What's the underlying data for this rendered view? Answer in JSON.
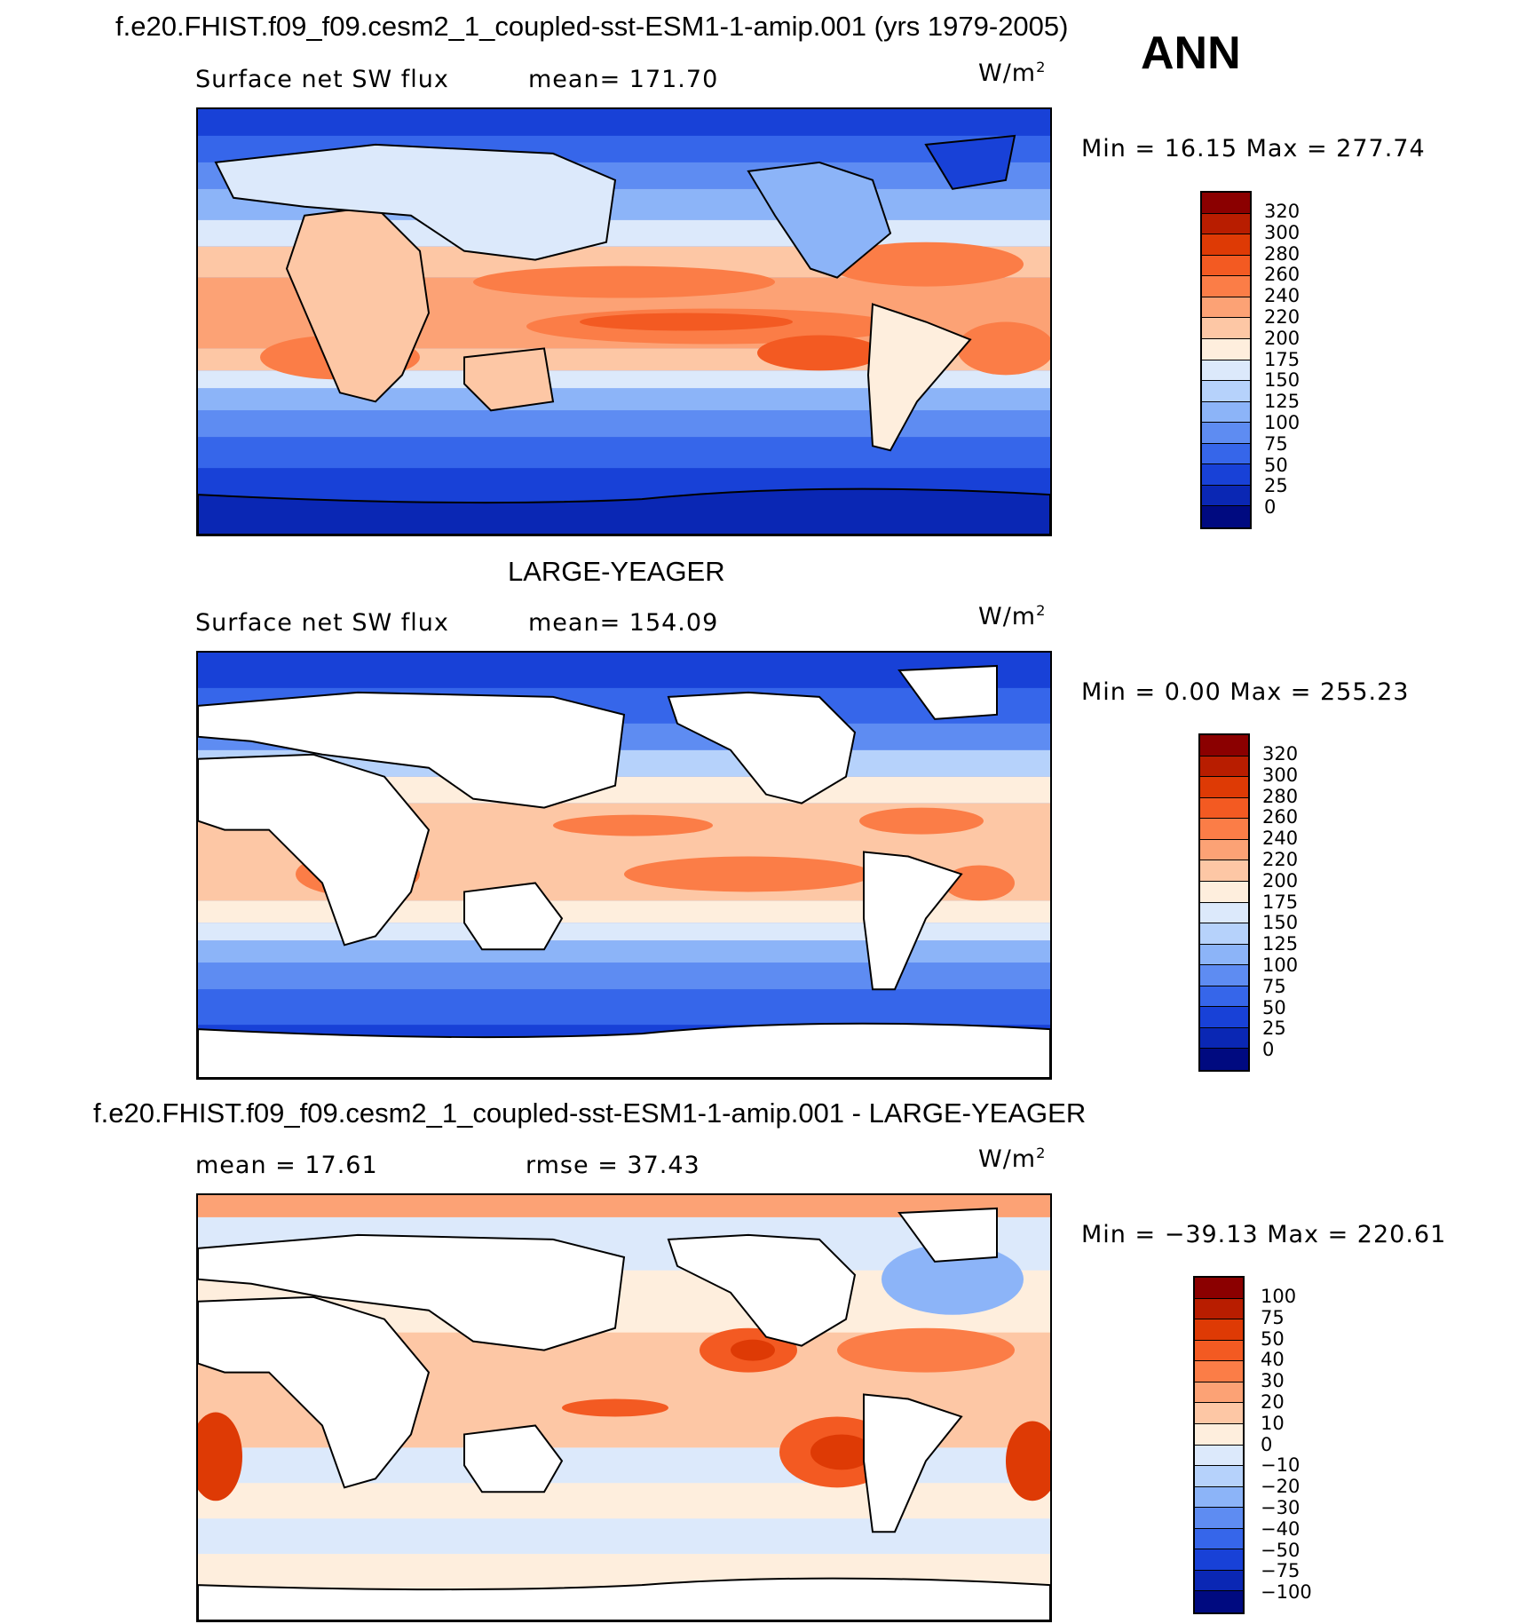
{
  "header": {
    "title": "f.e20.FHIST.f09_f09.cesm2_1_coupled-sst-ESM1-1-amip.001 (yrs 1979-2005)",
    "season": "ANN"
  },
  "panels": [
    {
      "id": "model",
      "title": "",
      "left_label": "Surface net SW flux",
      "center_label": "mean= 171.70",
      "units": "W/m",
      "units_sup": "2",
      "minmax": "Min =   16.15 Max = 277.74",
      "colorbar": {
        "labels": [
          "320",
          "300",
          "280",
          "260",
          "240",
          "220",
          "200",
          "175",
          "150",
          "125",
          "100",
          "75",
          "50",
          "25",
          "0"
        ],
        "colors": [
          "#8b0000",
          "#b81d00",
          "#de3a05",
          "#f35a22",
          "#fb7d47",
          "#fca275",
          "#fdc7a5",
          "#feeedd",
          "#dce9fb",
          "#b6d2fb",
          "#8cb4f8",
          "#5e8cf2",
          "#3666ea",
          "#1841d7",
          "#0a27b4",
          "#000a80"
        ]
      }
    },
    {
      "id": "obs",
      "title": "LARGE-YEAGER",
      "left_label": "Surface net SW flux",
      "center_label": "mean= 154.09",
      "units": "W/m",
      "units_sup": "2",
      "minmax": "Min =    0.00 Max = 255.23",
      "colorbar": {
        "labels": [
          "320",
          "300",
          "280",
          "260",
          "240",
          "220",
          "200",
          "175",
          "150",
          "125",
          "100",
          "75",
          "50",
          "25",
          "0"
        ],
        "colors": [
          "#8b0000",
          "#b81d00",
          "#de3a05",
          "#f35a22",
          "#fb7d47",
          "#fca275",
          "#fdc7a5",
          "#feeedd",
          "#dce9fb",
          "#b6d2fb",
          "#8cb4f8",
          "#5e8cf2",
          "#3666ea",
          "#1841d7",
          "#0a27b4",
          "#000a80"
        ]
      }
    },
    {
      "id": "diff",
      "title": "f.e20.FHIST.f09_f09.cesm2_1_coupled-sst-ESM1-1-amip.001 - LARGE-YEAGER",
      "left_label": "mean =   17.61",
      "center_label": "rmse =   37.43",
      "units": "W/m",
      "units_sup": "2",
      "minmax": "Min = −39.13 Max = 220.61",
      "colorbar": {
        "labels": [
          "100",
          "75",
          "50",
          "40",
          "30",
          "20",
          "10",
          "0",
          "−10",
          "−20",
          "−30",
          "−40",
          "−50",
          "−75",
          "−100"
        ],
        "colors": [
          "#8b0000",
          "#b81d00",
          "#de3a05",
          "#f35a22",
          "#fb7d47",
          "#fca275",
          "#fdc7a5",
          "#feeedd",
          "#dce9fb",
          "#b6d2fb",
          "#8cb4f8",
          "#5e8cf2",
          "#3666ea",
          "#1841d7",
          "#0a27b4",
          "#000a80"
        ]
      }
    }
  ],
  "colors": {
    "land_mask": "#ffffff",
    "coastline": "#000000"
  }
}
